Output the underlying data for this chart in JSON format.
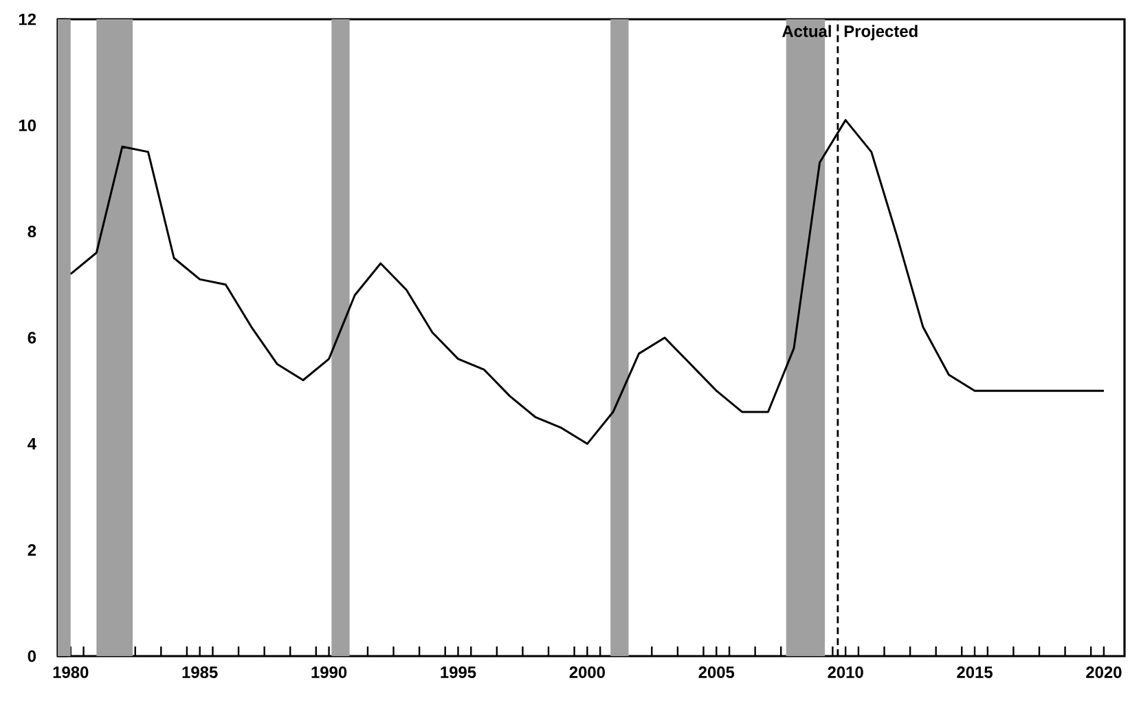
{
  "chart_data": {
    "type": "line",
    "x": [
      1980,
      1981,
      1982,
      1983,
      1984,
      1985,
      1986,
      1987,
      1988,
      1989,
      1990,
      1991,
      1992,
      1993,
      1994,
      1995,
      1996,
      1997,
      1998,
      1999,
      2000,
      2001,
      2002,
      2003,
      2004,
      2005,
      2006,
      2007,
      2008,
      2009,
      2010,
      2011,
      2012,
      2013,
      2014,
      2015,
      2016,
      2017,
      2018,
      2019,
      2020
    ],
    "series": [
      {
        "color": "#000000",
        "values": [
          7.2,
          7.6,
          9.6,
          9.5,
          7.5,
          7.1,
          7.0,
          6.2,
          5.5,
          5.2,
          5.6,
          6.8,
          7.4,
          6.9,
          6.1,
          5.6,
          5.4,
          4.9,
          4.5,
          4.3,
          4.0,
          4.6,
          5.7,
          6.0,
          5.5,
          5.0,
          4.6,
          4.6,
          5.8,
          9.3,
          10.1,
          9.5,
          7.9,
          6.2,
          5.3,
          5.0,
          5.0,
          5.0,
          5.0,
          5.0,
          5.0
        ]
      }
    ],
    "xlim": [
      1979.5,
      2020.8
    ],
    "ylim": [
      0,
      12
    ],
    "xticks": [
      {
        "value": 1980,
        "label": "1980"
      },
      {
        "value": 1985,
        "label": "1985"
      },
      {
        "value": 1990,
        "label": "1990"
      },
      {
        "value": 1995,
        "label": "1995"
      },
      {
        "value": 2000,
        "label": "2000"
      },
      {
        "value": 2005,
        "label": "2005"
      },
      {
        "value": 2010,
        "label": "2010"
      },
      {
        "value": 2015,
        "label": "2015"
      },
      {
        "value": 2020,
        "label": "2020"
      },
      {
        "value": 1980.5,
        "label": null
      },
      {
        "value": 1981.5,
        "label": null
      },
      {
        "value": 1982.5,
        "label": null
      },
      {
        "value": 1983.5,
        "label": null
      },
      {
        "value": 1984.5,
        "label": null
      },
      {
        "value": 1985.5,
        "label": null
      },
      {
        "value": 1986.5,
        "label": null
      },
      {
        "value": 1987.5,
        "label": null
      },
      {
        "value": 1988.5,
        "label": null
      },
      {
        "value": 1989.5,
        "label": null
      },
      {
        "value": 1990.5,
        "label": null
      },
      {
        "value": 1991.5,
        "label": null
      },
      {
        "value": 1992.5,
        "label": null
      },
      {
        "value": 1993.5,
        "label": null
      },
      {
        "value": 1994.5,
        "label": null
      },
      {
        "value": 1995.5,
        "label": null
      },
      {
        "value": 1996.5,
        "label": null
      },
      {
        "value": 1997.5,
        "label": null
      },
      {
        "value": 1998.5,
        "label": null
      },
      {
        "value": 1999.5,
        "label": null
      },
      {
        "value": 2000.5,
        "label": null
      },
      {
        "value": 2001.5,
        "label": null
      },
      {
        "value": 2002.5,
        "label": null
      },
      {
        "value": 2003.5,
        "label": null
      },
      {
        "value": 2004.5,
        "label": null
      },
      {
        "value": 2005.5,
        "label": null
      },
      {
        "value": 2006.5,
        "label": null
      },
      {
        "value": 2007.5,
        "label": null
      },
      {
        "value": 2008.5,
        "label": null
      },
      {
        "value": 2009.5,
        "label": null
      },
      {
        "value": 2010.5,
        "label": null
      },
      {
        "value": 2011.5,
        "label": null
      },
      {
        "value": 2012.5,
        "label": null
      },
      {
        "value": 2013.5,
        "label": null
      },
      {
        "value": 2014.5,
        "label": null
      },
      {
        "value": 2015.5,
        "label": null
      },
      {
        "value": 2016.5,
        "label": null
      },
      {
        "value": 2017.5,
        "label": null
      },
      {
        "value": 2018.5,
        "label": null
      },
      {
        "value": 2019.5,
        "label": null
      }
    ],
    "yticks": [
      0,
      2,
      4,
      6,
      8,
      10,
      12
    ],
    "bands": [
      {
        "axis": "x",
        "from": 1979.5,
        "to": 1980.0,
        "color": "#a0a0a0"
      },
      {
        "axis": "x",
        "from": 1981.0,
        "to": 1982.4,
        "color": "#a0a0a0"
      },
      {
        "axis": "x",
        "from": 1990.1,
        "to": 1990.8,
        "color": "#a0a0a0"
      },
      {
        "axis": "x",
        "from": 2000.9,
        "to": 2001.6,
        "color": "#a0a0a0"
      },
      {
        "axis": "x",
        "from": 2007.7,
        "to": 2009.2,
        "color": "#a0a0a0"
      }
    ],
    "ref_lines": [
      {
        "axis": "x",
        "value": 2009.7,
        "color": "#000000",
        "line_style": "dashed"
      }
    ],
    "annotations": [
      "Actual",
      "Projected"
    ],
    "grid": false
  }
}
